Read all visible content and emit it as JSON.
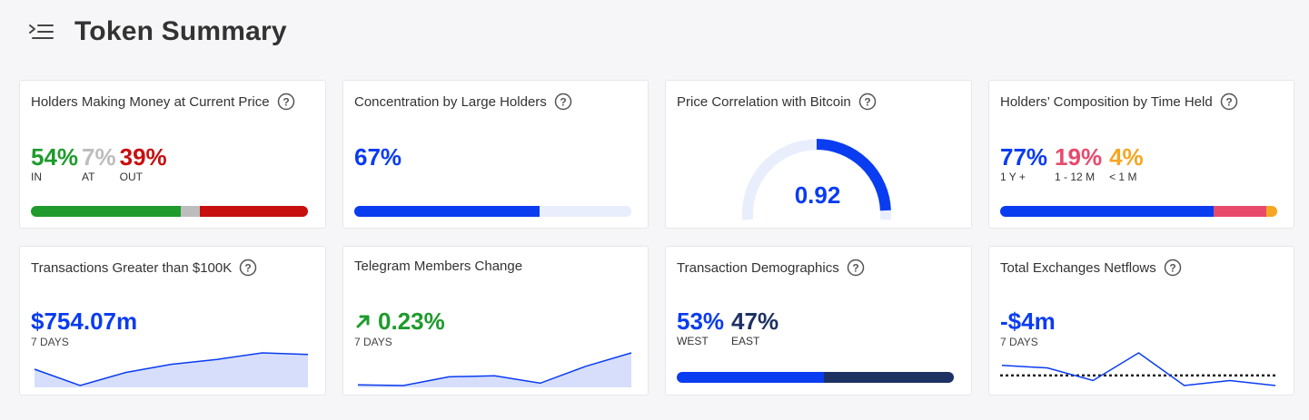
{
  "header": {
    "title": "Token Summary",
    "icon": "menu-collapse-icon"
  },
  "colors": {
    "green": "#1e9b2c",
    "gray": "#bdbdbd",
    "red": "#c80f0f",
    "blue": "#0a3cf0",
    "light_blue": "#e8eefc",
    "pink": "#e84a6c",
    "orange": "#f5a623",
    "navy": "#1e3163"
  },
  "cards": {
    "holders_money": {
      "title": "Holders Making Money at Current Price",
      "in_value": "54%",
      "in_label": "IN",
      "at_value": "7%",
      "at_label": "AT",
      "out_value": "39%",
      "out_label": "OUT",
      "fractions": [
        0.54,
        0.07,
        0.39
      ]
    },
    "concentration": {
      "title": "Concentration by Large Holders",
      "value": "67%",
      "fraction": 0.67
    },
    "correlation": {
      "title": "Price Correlation with Bitcoin",
      "value": "0.92",
      "fraction": 0.92
    },
    "composition": {
      "title": "Holders’ Composition by Time Held",
      "long_value": "77%",
      "long_label": "1 Y +",
      "mid_value": "19%",
      "mid_label": "1 - 12 M",
      "short_value": "4%",
      "short_label": "< 1 M",
      "fractions": [
        0.77,
        0.19,
        0.04
      ]
    },
    "transactions": {
      "title": "Transactions Greater than $100K",
      "value": "$754.07m",
      "period": "7 DAYS",
      "series": [
        6,
        1,
        5,
        7.5,
        9,
        11,
        10.5
      ]
    },
    "telegram": {
      "title": "Telegram Members Change",
      "value": "0.23%",
      "period": "7 DAYS",
      "series": [
        1,
        0.8,
        3.4,
        3.7,
        1.5,
        6.5,
        10.5
      ]
    },
    "demographics": {
      "title": "Transaction Demographics",
      "west_value": "53%",
      "west_label": "WEST",
      "east_value": "47%",
      "east_label": "EAST",
      "fractions": [
        0.53,
        0.47
      ]
    },
    "netflows": {
      "title": "Total Exchanges Netflows",
      "value": "-$4m",
      "period": "7 DAYS",
      "series": [
        2,
        1.5,
        -1,
        4.5,
        -2,
        -1,
        -2
      ],
      "baseline": 0
    }
  }
}
